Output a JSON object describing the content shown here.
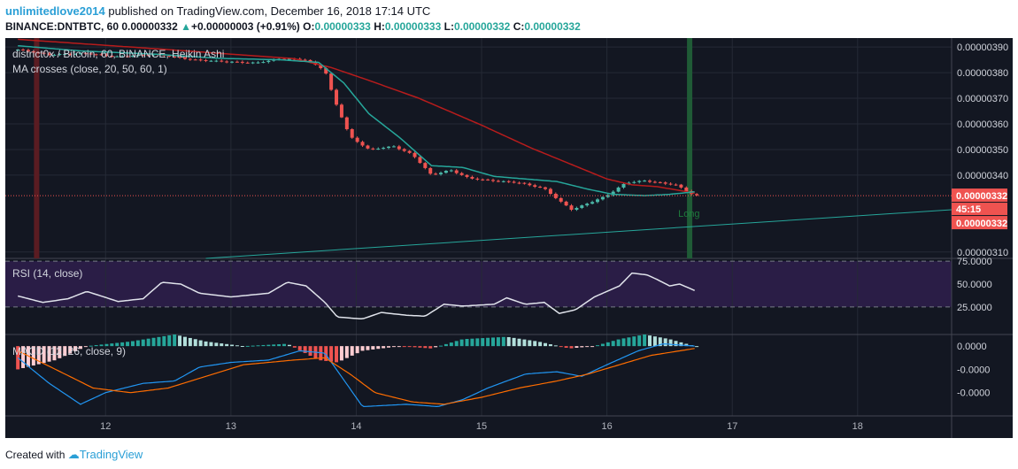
{
  "header": {
    "author": "unlimitedlove2014",
    "published": "published on TradingView.com, December 16, 2018 17:14 UTC",
    "symbol": "BINANCE:DNTBTC, 60",
    "last": "0.00000332",
    "change_arrow": "▲",
    "change": "+0.00000003 (+0.91%)",
    "o_label": "O:",
    "o": "0.00000333",
    "h_label": "H:",
    "h": "0.00000333",
    "l_label": "L:",
    "l": "0.00000332",
    "c_label": "C:",
    "c": "0.00000332"
  },
  "footer": {
    "created_with": "Created with",
    "brand": "TradingView"
  },
  "colors": {
    "background": "#131722",
    "rsi_band": "#2a1d46",
    "up": "#4bb8a8",
    "down": "#ef5350",
    "ma_fast": "#26a69a",
    "ma_slow": "#b71c1c",
    "rsi_line": "#e0e3eb",
    "macd_line": "#2196f3",
    "signal_line": "#ff6d00",
    "trend_line": "#26a69a",
    "price_tag": "#ef5350",
    "vline_red": "#5a1c22",
    "vline_green": "#1f5b36"
  },
  "chart_data": [
    {
      "type": "candlestick",
      "title": "district0x / Bitcoin, 60, BINANCE, Heikin Ashi",
      "indicator_title": "MA crosses (close, 20, 50, 60, 1)",
      "ylim": [
        3.075e-06,
        3.935e-06
      ],
      "y_ticks": [
        "0.00000390",
        "0.00000380",
        "0.00000370",
        "0.00000360",
        "0.00000350",
        "0.00000340",
        "0.00000332",
        "0.00000310"
      ],
      "price_tags": [
        "0.00000332",
        "45:15",
        "0.00000332"
      ],
      "annotation": "Long",
      "close_anchors": [
        [
          11.3,
          3.89e-06
        ],
        [
          11.55,
          3.87e-06
        ],
        [
          11.85,
          3.875e-06
        ],
        [
          12.1,
          3.862e-06
        ],
        [
          12.4,
          3.872e-06
        ],
        [
          12.7,
          3.85e-06
        ],
        [
          13.0,
          3.842e-06
        ],
        [
          13.2,
          3.838e-06
        ],
        [
          13.4,
          3.855e-06
        ],
        [
          13.6,
          3.85e-06
        ],
        [
          13.75,
          3.81e-06
        ],
        [
          13.82,
          3.7e-06
        ],
        [
          13.95,
          3.55e-06
        ],
        [
          14.1,
          3.5e-06
        ],
        [
          14.3,
          3.512e-06
        ],
        [
          14.45,
          3.48e-06
        ],
        [
          14.6,
          3.4e-06
        ],
        [
          14.75,
          3.42e-06
        ],
        [
          14.9,
          3.388e-06
        ],
        [
          15.05,
          3.38e-06
        ],
        [
          15.3,
          3.37e-06
        ],
        [
          15.5,
          3.348e-06
        ],
        [
          15.62,
          3.3e-06
        ],
        [
          15.72,
          3.265e-06
        ],
        [
          15.85,
          3.29e-06
        ],
        [
          16.0,
          3.32e-06
        ],
        [
          16.15,
          3.37e-06
        ],
        [
          16.3,
          3.378e-06
        ],
        [
          16.45,
          3.368e-06
        ],
        [
          16.55,
          3.362e-06
        ],
        [
          16.7,
          3.32e-06
        ]
      ],
      "ma_fast_anchors": [
        [
          11.3,
          3.905e-06
        ],
        [
          11.8,
          3.885e-06
        ],
        [
          12.4,
          3.872e-06
        ],
        [
          12.9,
          3.856e-06
        ],
        [
          13.4,
          3.85e-06
        ],
        [
          13.7,
          3.84e-06
        ],
        [
          13.9,
          3.76e-06
        ],
        [
          14.1,
          3.64e-06
        ],
        [
          14.35,
          3.545e-06
        ],
        [
          14.6,
          3.437e-06
        ],
        [
          14.85,
          3.43e-06
        ],
        [
          15.1,
          3.395e-06
        ],
        [
          15.35,
          3.385e-06
        ],
        [
          15.6,
          3.375e-06
        ],
        [
          15.85,
          3.345e-06
        ],
        [
          16.05,
          3.325e-06
        ],
        [
          16.3,
          3.32e-06
        ],
        [
          16.5,
          3.325e-06
        ],
        [
          16.7,
          3.335e-06
        ]
      ],
      "ma_slow_anchors": [
        [
          11.3,
          3.93e-06
        ],
        [
          11.9,
          3.91e-06
        ],
        [
          12.5,
          3.89e-06
        ],
        [
          13.0,
          3.872e-06
        ],
        [
          13.5,
          3.855e-06
        ],
        [
          13.8,
          3.82e-06
        ],
        [
          14.1,
          3.77e-06
        ],
        [
          14.5,
          3.7e-06
        ],
        [
          15.0,
          3.595e-06
        ],
        [
          15.4,
          3.505e-06
        ],
        [
          15.8,
          3.425e-06
        ],
        [
          16.0,
          3.385e-06
        ],
        [
          16.2,
          3.362e-06
        ],
        [
          16.4,
          3.355e-06
        ],
        [
          16.7,
          3.33e-06
        ]
      ],
      "trend_line": [
        [
          12.8,
          3.075e-06
        ],
        [
          18.75,
          3.265e-06
        ]
      ],
      "signal_x": [
        11.45,
        16.66
      ]
    },
    {
      "type": "line",
      "title": "RSI (14, close)",
      "ylim": [
        -5,
        78
      ],
      "band": [
        25,
        75
      ],
      "y_ticks": [
        "75.0000",
        "50.0000",
        "25.0000"
      ],
      "anchors": [
        [
          11.3,
          37
        ],
        [
          11.5,
          30
        ],
        [
          11.7,
          34
        ],
        [
          11.85,
          42
        ],
        [
          12.1,
          31
        ],
        [
          12.3,
          34
        ],
        [
          12.45,
          52
        ],
        [
          12.6,
          50
        ],
        [
          12.75,
          40
        ],
        [
          13.0,
          36
        ],
        [
          13.3,
          40
        ],
        [
          13.45,
          52
        ],
        [
          13.6,
          48
        ],
        [
          13.75,
          30
        ],
        [
          13.85,
          14
        ],
        [
          14.05,
          12
        ],
        [
          14.2,
          19
        ],
        [
          14.4,
          16
        ],
        [
          14.55,
          15
        ],
        [
          14.7,
          28
        ],
        [
          14.85,
          26
        ],
        [
          15.1,
          28
        ],
        [
          15.2,
          35
        ],
        [
          15.35,
          28
        ],
        [
          15.5,
          30
        ],
        [
          15.62,
          18
        ],
        [
          15.75,
          22
        ],
        [
          15.9,
          36
        ],
        [
          16.0,
          42
        ],
        [
          16.1,
          48
        ],
        [
          16.2,
          62
        ],
        [
          16.32,
          60
        ],
        [
          16.4,
          55
        ],
        [
          16.5,
          48
        ],
        [
          16.58,
          50
        ],
        [
          16.7,
          43
        ]
      ]
    },
    {
      "type": "histogram+line",
      "title": "MACD (12, 26, close, 9)",
      "ylim": [
        -3e-08,
        5e-09
      ],
      "y_ticks": [
        "0.0000",
        "-0.0000",
        "-0.0000"
      ],
      "hist_anchors": [
        [
          11.3,
          -1e-08
        ],
        [
          11.6,
          -6e-09
        ],
        [
          11.85,
          0.0
        ],
        [
          12.2,
          2e-09
        ],
        [
          12.55,
          5e-09
        ],
        [
          12.8,
          2e-09
        ],
        [
          13.1,
          0.0
        ],
        [
          13.45,
          1e-09
        ],
        [
          13.7,
          -6e-09
        ],
        [
          13.85,
          -7e-09
        ],
        [
          14.05,
          -2e-09
        ],
        [
          14.35,
          0.0
        ],
        [
          14.6,
          -1e-09
        ],
        [
          14.85,
          3e-09
        ],
        [
          15.2,
          4e-09
        ],
        [
          15.45,
          2e-09
        ],
        [
          15.7,
          -1e-09
        ],
        [
          15.9,
          0.0
        ],
        [
          16.1,
          3e-09
        ],
        [
          16.3,
          5e-09
        ],
        [
          16.5,
          3e-09
        ],
        [
          16.7,
          0.0
        ]
      ],
      "macd_anchors": [
        [
          11.3,
          -5e-09
        ],
        [
          11.55,
          -1.6e-08
        ],
        [
          11.8,
          -2.5e-08
        ],
        [
          12.0,
          -2e-08
        ],
        [
          12.3,
          -1.6e-08
        ],
        [
          12.55,
          -1.5e-08
        ],
        [
          12.75,
          -9e-09
        ],
        [
          13.0,
          -7e-09
        ],
        [
          13.3,
          -6e-09
        ],
        [
          13.55,
          -2e-09
        ],
        [
          13.75,
          -3e-09
        ],
        [
          13.92,
          -1.6e-08
        ],
        [
          14.05,
          -2.6e-08
        ],
        [
          14.4,
          -2.5e-08
        ],
        [
          14.65,
          -2.6e-08
        ],
        [
          14.85,
          -2.3e-08
        ],
        [
          15.05,
          -1.8e-08
        ],
        [
          15.35,
          -1.2e-08
        ],
        [
          15.6,
          -1.1e-08
        ],
        [
          15.8,
          -1.3e-08
        ],
        [
          16.0,
          -8e-09
        ],
        [
          16.25,
          -2e-09
        ],
        [
          16.45,
          1e-09
        ],
        [
          16.7,
          0.0
        ]
      ],
      "signal_anchors": [
        [
          11.3,
          -2e-09
        ],
        [
          11.6,
          -1e-08
        ],
        [
          11.9,
          -1.8e-08
        ],
        [
          12.2,
          -2e-08
        ],
        [
          12.5,
          -1.8e-08
        ],
        [
          12.8,
          -1.3e-08
        ],
        [
          13.1,
          -8e-09
        ],
        [
          13.5,
          -6e-09
        ],
        [
          13.75,
          -5e-09
        ],
        [
          13.95,
          -1.2e-08
        ],
        [
          14.15,
          -2e-08
        ],
        [
          14.45,
          -2.4e-08
        ],
        [
          14.7,
          -2.5e-08
        ],
        [
          15.0,
          -2.2e-08
        ],
        [
          15.3,
          -1.8e-08
        ],
        [
          15.6,
          -1.5e-08
        ],
        [
          15.85,
          -1.2e-08
        ],
        [
          16.1,
          -8e-09
        ],
        [
          16.35,
          -4e-09
        ],
        [
          16.7,
          -1e-09
        ]
      ]
    },
    {
      "type": "time-axis",
      "x_ticks": [
        12,
        13,
        14,
        15,
        16,
        17,
        18
      ],
      "x_labels": [
        "12",
        "13",
        "14",
        "15",
        "16",
        "17",
        "18"
      ],
      "xlim": [
        11.2,
        18.75
      ]
    }
  ]
}
